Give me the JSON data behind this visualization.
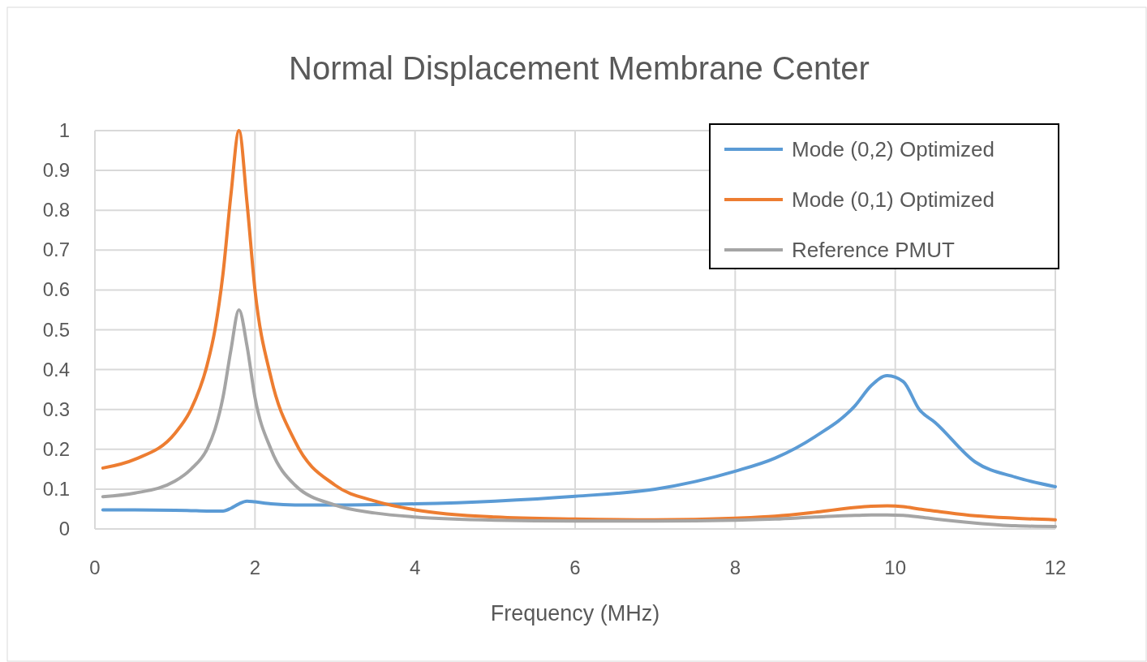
{
  "chart_data": {
    "type": "line",
    "title": "Normal Displacement Membrane Center",
    "xlabel": "Frequency (MHz)",
    "x": [
      0.1,
      0.5,
      1,
      1.2,
      1.4,
      1.5,
      1.6,
      1.7,
      1.8,
      1.9,
      2,
      2.2,
      2.5,
      3,
      3.5,
      4,
      5,
      6,
      7,
      8,
      8.5,
      9,
      9.5,
      9.7,
      9.9,
      10.1,
      10.3,
      10.5,
      11,
      11.5,
      12
    ],
    "series": [
      {
        "name": "Mode (0,2) Optimized",
        "color": "#5b9bd5",
        "values": [
          0.048,
          0.048,
          0.047,
          0.046,
          0.045,
          0.045,
          0.045,
          0.052,
          0.063,
          0.07,
          0.068,
          0.063,
          0.06,
          0.06,
          0.061,
          0.063,
          0.07,
          0.082,
          0.1,
          0.145,
          0.178,
          0.232,
          0.31,
          0.36,
          0.385,
          0.37,
          0.3,
          0.267,
          0.168,
          0.13,
          0.106
        ]
      },
      {
        "name": "Mode (0,1) Optimized",
        "color": "#ed7d31",
        "values": [
          0.153,
          0.175,
          0.24,
          0.3,
          0.41,
          0.5,
          0.64,
          0.84,
          1,
          0.82,
          0.6,
          0.38,
          0.22,
          0.11,
          0.07,
          0.048,
          0.03,
          0.025,
          0.023,
          0.027,
          0.032,
          0.042,
          0.054,
          0.057,
          0.058,
          0.056,
          0.05,
          0.045,
          0.033,
          0.027,
          0.023
        ]
      },
      {
        "name": "Reference PMUT",
        "color": "#a5a5a5",
        "values": [
          0.081,
          0.09,
          0.12,
          0.15,
          0.2,
          0.25,
          0.33,
          0.45,
          0.55,
          0.46,
          0.33,
          0.2,
          0.11,
          0.06,
          0.04,
          0.03,
          0.022,
          0.02,
          0.02,
          0.022,
          0.025,
          0.03,
          0.034,
          0.035,
          0.035,
          0.034,
          0.03,
          0.025,
          0.015,
          0.008,
          0.006
        ]
      }
    ],
    "xlim": [
      0,
      12
    ],
    "xticks": [
      0,
      2,
      4,
      6,
      8,
      10,
      12
    ],
    "ylim": [
      0,
      1
    ],
    "yticks": [
      0,
      0.1,
      0.2,
      0.3,
      0.4,
      0.5,
      0.6,
      0.7,
      0.8,
      0.9,
      1
    ],
    "grid": true,
    "legend": "top right",
    "marker": "none",
    "line_style": "solid"
  }
}
